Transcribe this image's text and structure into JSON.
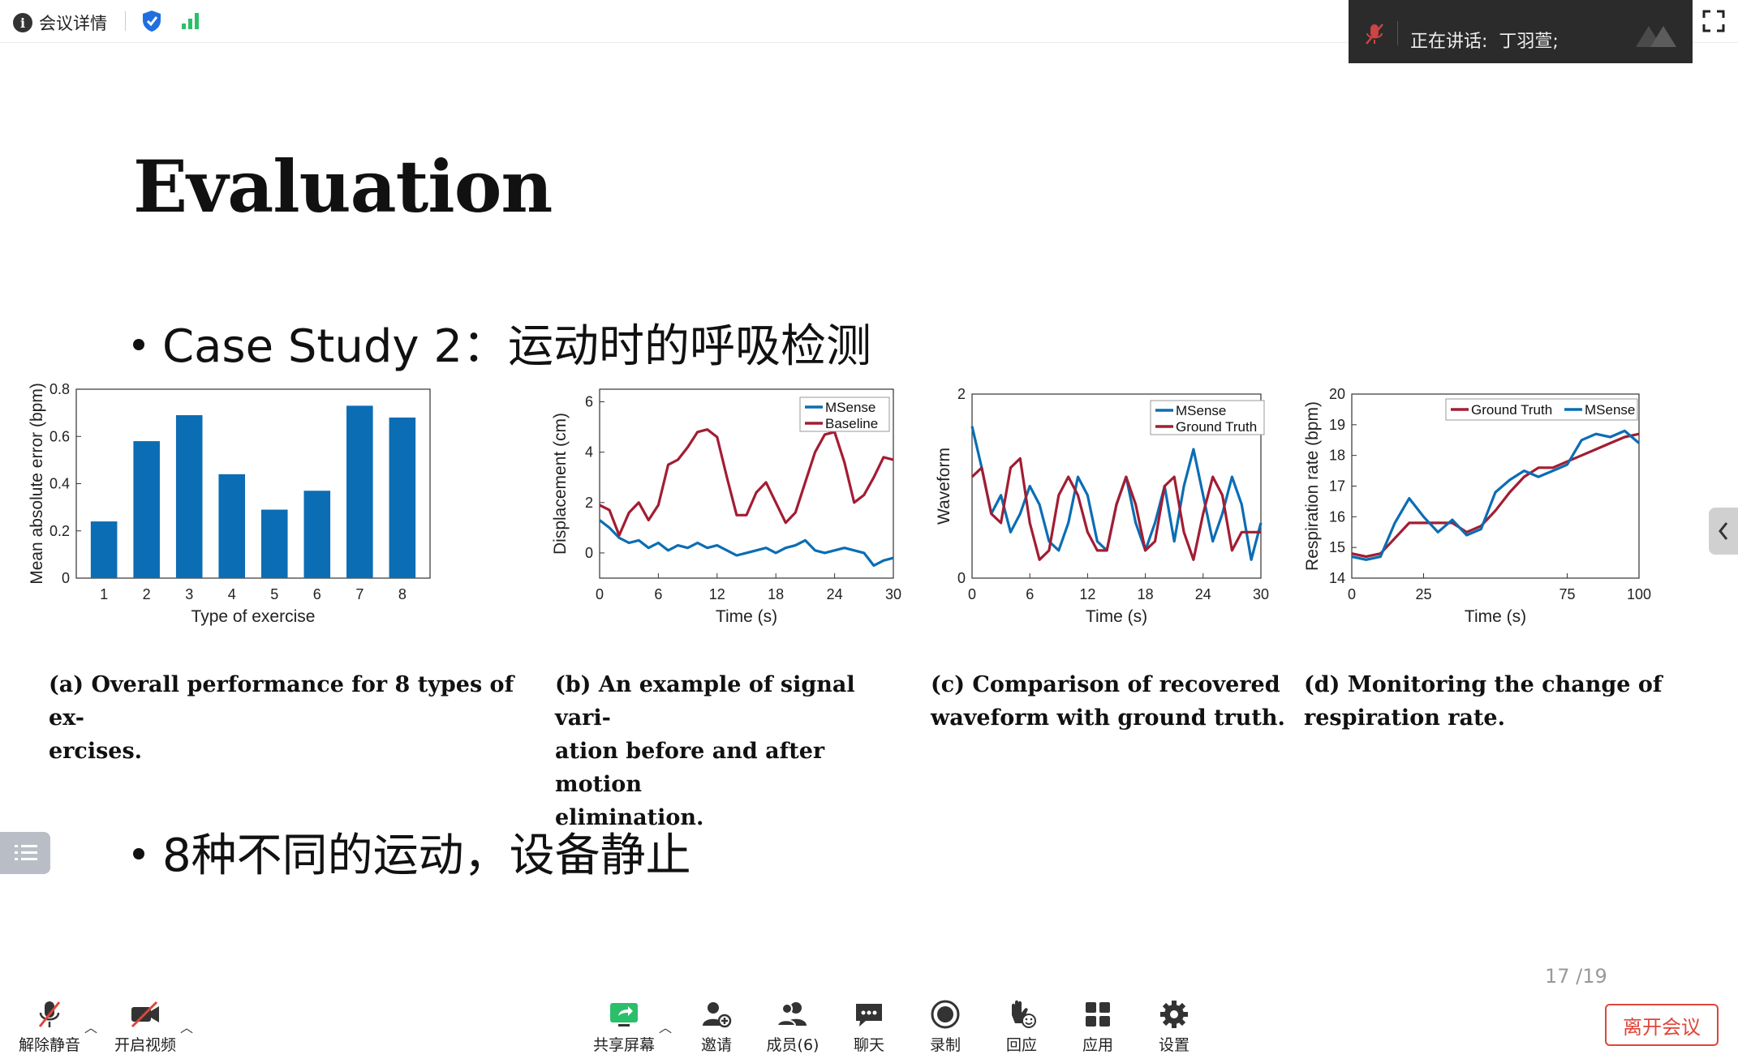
{
  "topbar": {
    "meeting_info": "会议详情"
  },
  "speaker": {
    "label": "正在讲话:",
    "name": "丁羽萱;"
  },
  "slide": {
    "title": "Evaluation",
    "bullet1": "Case Study 2：运动时的呼吸检测",
    "bullet2": "8种不同的运动，设备静止",
    "page": "17 /19"
  },
  "figures": {
    "a": {
      "caption_line1": "(a) Overall performance for 8 types of ex-",
      "caption_line2": "ercises."
    },
    "b": {
      "caption_line1": "(b) An example of signal vari-",
      "caption_line2": "ation before and after motion",
      "caption_line3": "elimination."
    },
    "c": {
      "caption_line1": "(c) Comparison of recovered",
      "caption_line2": "waveform with ground truth."
    },
    "d": {
      "caption_line1": "(d) Monitoring the change of",
      "caption_line2": "respiration rate."
    }
  },
  "chart_data": [
    {
      "id": "a",
      "type": "bar",
      "categories": [
        "1",
        "2",
        "3",
        "4",
        "5",
        "6",
        "7",
        "8"
      ],
      "values": [
        0.24,
        0.58,
        0.69,
        0.44,
        0.29,
        0.37,
        0.73,
        0.68
      ],
      "xlabel": "Type of exercise",
      "ylabel": "Mean absolute error (bpm)",
      "ylim": [
        0,
        0.8
      ],
      "yticks": [
        "0",
        "0.2",
        "0.4",
        "0.6",
        "0.8"
      ],
      "color": "#0b6db4"
    },
    {
      "id": "b",
      "type": "line",
      "xlabel": "Time (s)",
      "ylabel": "Displacement (cm)",
      "xlim": [
        0,
        30
      ],
      "ylim": [
        -1,
        6.5
      ],
      "xticks": [
        "0",
        "6",
        "12",
        "18",
        "24",
        "30"
      ],
      "yticks": [
        "0",
        "2",
        "4",
        "6"
      ],
      "legend_position": "top-right",
      "series": [
        {
          "name": "MSense",
          "color": "#0b6db4",
          "x": [
            0,
            1,
            2,
            3,
            4,
            5,
            6,
            7,
            8,
            9,
            10,
            11,
            12,
            13,
            14,
            15,
            16,
            17,
            18,
            19,
            20,
            21,
            22,
            23,
            24,
            25,
            26,
            27,
            28,
            29,
            30
          ],
          "values": [
            1.3,
            1.0,
            0.6,
            0.4,
            0.5,
            0.2,
            0.4,
            0.1,
            0.3,
            0.2,
            0.4,
            0.2,
            0.3,
            0.1,
            -0.1,
            0.0,
            0.1,
            0.2,
            0.0,
            0.2,
            0.3,
            0.5,
            0.1,
            0.0,
            0.1,
            0.2,
            0.1,
            0.0,
            -0.5,
            -0.3,
            -0.2
          ]
        },
        {
          "name": "Baseline",
          "color": "#a21d33",
          "x": [
            0,
            1,
            2,
            3,
            4,
            5,
            6,
            7,
            8,
            9,
            10,
            11,
            12,
            13,
            14,
            15,
            16,
            17,
            18,
            19,
            20,
            21,
            22,
            23,
            24,
            25,
            26,
            27,
            28,
            29,
            30
          ],
          "values": [
            1.9,
            1.7,
            0.7,
            1.6,
            2.0,
            1.3,
            1.9,
            3.5,
            3.7,
            4.2,
            4.8,
            4.9,
            4.6,
            3.0,
            1.5,
            1.5,
            2.4,
            2.8,
            2.0,
            1.2,
            1.6,
            2.8,
            4.0,
            4.7,
            4.8,
            3.6,
            2.0,
            2.3,
            3.0,
            3.8,
            3.7
          ]
        }
      ]
    },
    {
      "id": "c",
      "type": "line",
      "xlabel": "Time (s)",
      "ylabel": "Waveform",
      "xlim": [
        0,
        30
      ],
      "ylim": [
        0,
        2
      ],
      "xticks": [
        "0",
        "6",
        "12",
        "18",
        "24",
        "30"
      ],
      "yticks": [
        "0",
        "2"
      ],
      "legend_position": "top-right",
      "series": [
        {
          "name": "MSense",
          "color": "#0b6db4",
          "x": [
            0,
            1,
            2,
            3,
            4,
            5,
            6,
            7,
            8,
            9,
            10,
            11,
            12,
            13,
            14,
            15,
            16,
            17,
            18,
            19,
            20,
            21,
            22,
            23,
            24,
            25,
            26,
            27,
            28,
            29,
            30
          ],
          "values": [
            1.65,
            1.2,
            0.7,
            0.9,
            0.5,
            0.7,
            1.0,
            0.8,
            0.4,
            0.3,
            0.6,
            1.1,
            0.9,
            0.4,
            0.3,
            0.8,
            1.1,
            0.6,
            0.3,
            0.6,
            1.0,
            0.4,
            1.0,
            1.4,
            0.9,
            0.4,
            0.7,
            1.1,
            0.8,
            0.2,
            0.6
          ]
        },
        {
          "name": "Ground Truth",
          "color": "#a21d33",
          "x": [
            0,
            1,
            2,
            3,
            4,
            5,
            6,
            7,
            8,
            9,
            10,
            11,
            12,
            13,
            14,
            15,
            16,
            17,
            18,
            19,
            20,
            21,
            22,
            23,
            24,
            25,
            26,
            27,
            28,
            29,
            30
          ],
          "values": [
            1.1,
            1.2,
            0.7,
            0.6,
            1.2,
            1.3,
            0.6,
            0.2,
            0.3,
            0.9,
            1.1,
            0.9,
            0.5,
            0.3,
            0.3,
            0.8,
            1.1,
            0.8,
            0.3,
            0.4,
            1.0,
            1.1,
            0.5,
            0.2,
            0.7,
            1.1,
            0.9,
            0.3,
            0.5,
            0.5,
            0.5
          ]
        }
      ]
    },
    {
      "id": "d",
      "type": "line",
      "xlabel": "Time (s)",
      "ylabel": "Respiration rate (bpm)",
      "xlim": [
        0,
        100
      ],
      "ylim": [
        14,
        20
      ],
      "xticks": [
        "0",
        "25",
        "75",
        "100"
      ],
      "yticks": [
        "14",
        "15",
        "16",
        "17",
        "18",
        "19",
        "20"
      ],
      "legend_position": "top",
      "series": [
        {
          "name": "Ground Truth",
          "color": "#a21d33",
          "x": [
            0,
            5,
            10,
            15,
            20,
            25,
            30,
            35,
            40,
            45,
            50,
            55,
            60,
            65,
            70,
            75,
            80,
            85,
            90,
            95,
            100
          ],
          "values": [
            14.8,
            14.7,
            14.8,
            15.3,
            15.8,
            15.8,
            15.8,
            15.8,
            15.5,
            15.7,
            16.2,
            16.8,
            17.3,
            17.6,
            17.6,
            17.8,
            18.0,
            18.2,
            18.4,
            18.6,
            18.7
          ]
        },
        {
          "name": "MSense",
          "color": "#0b6db4",
          "x": [
            0,
            5,
            10,
            15,
            20,
            25,
            30,
            35,
            40,
            45,
            50,
            55,
            60,
            65,
            70,
            75,
            80,
            85,
            90,
            95,
            100
          ],
          "values": [
            14.7,
            14.6,
            14.7,
            15.8,
            16.6,
            16.0,
            15.5,
            15.9,
            15.4,
            15.6,
            16.8,
            17.2,
            17.5,
            17.3,
            17.5,
            17.7,
            18.5,
            18.7,
            18.6,
            18.8,
            18.4
          ]
        }
      ]
    }
  ],
  "bottombar": {
    "unmute": "解除静音",
    "start_video": "开启视频",
    "share": "共享屏幕",
    "invite": "邀请",
    "members": "成员(6)",
    "chat": "聊天",
    "record": "录制",
    "react": "回应",
    "apps": "应用",
    "settings": "设置",
    "leave": "离开会议"
  },
  "colors": {
    "accent": "#0b6db4",
    "red": "#a21d33",
    "leave": "#e0453b"
  }
}
